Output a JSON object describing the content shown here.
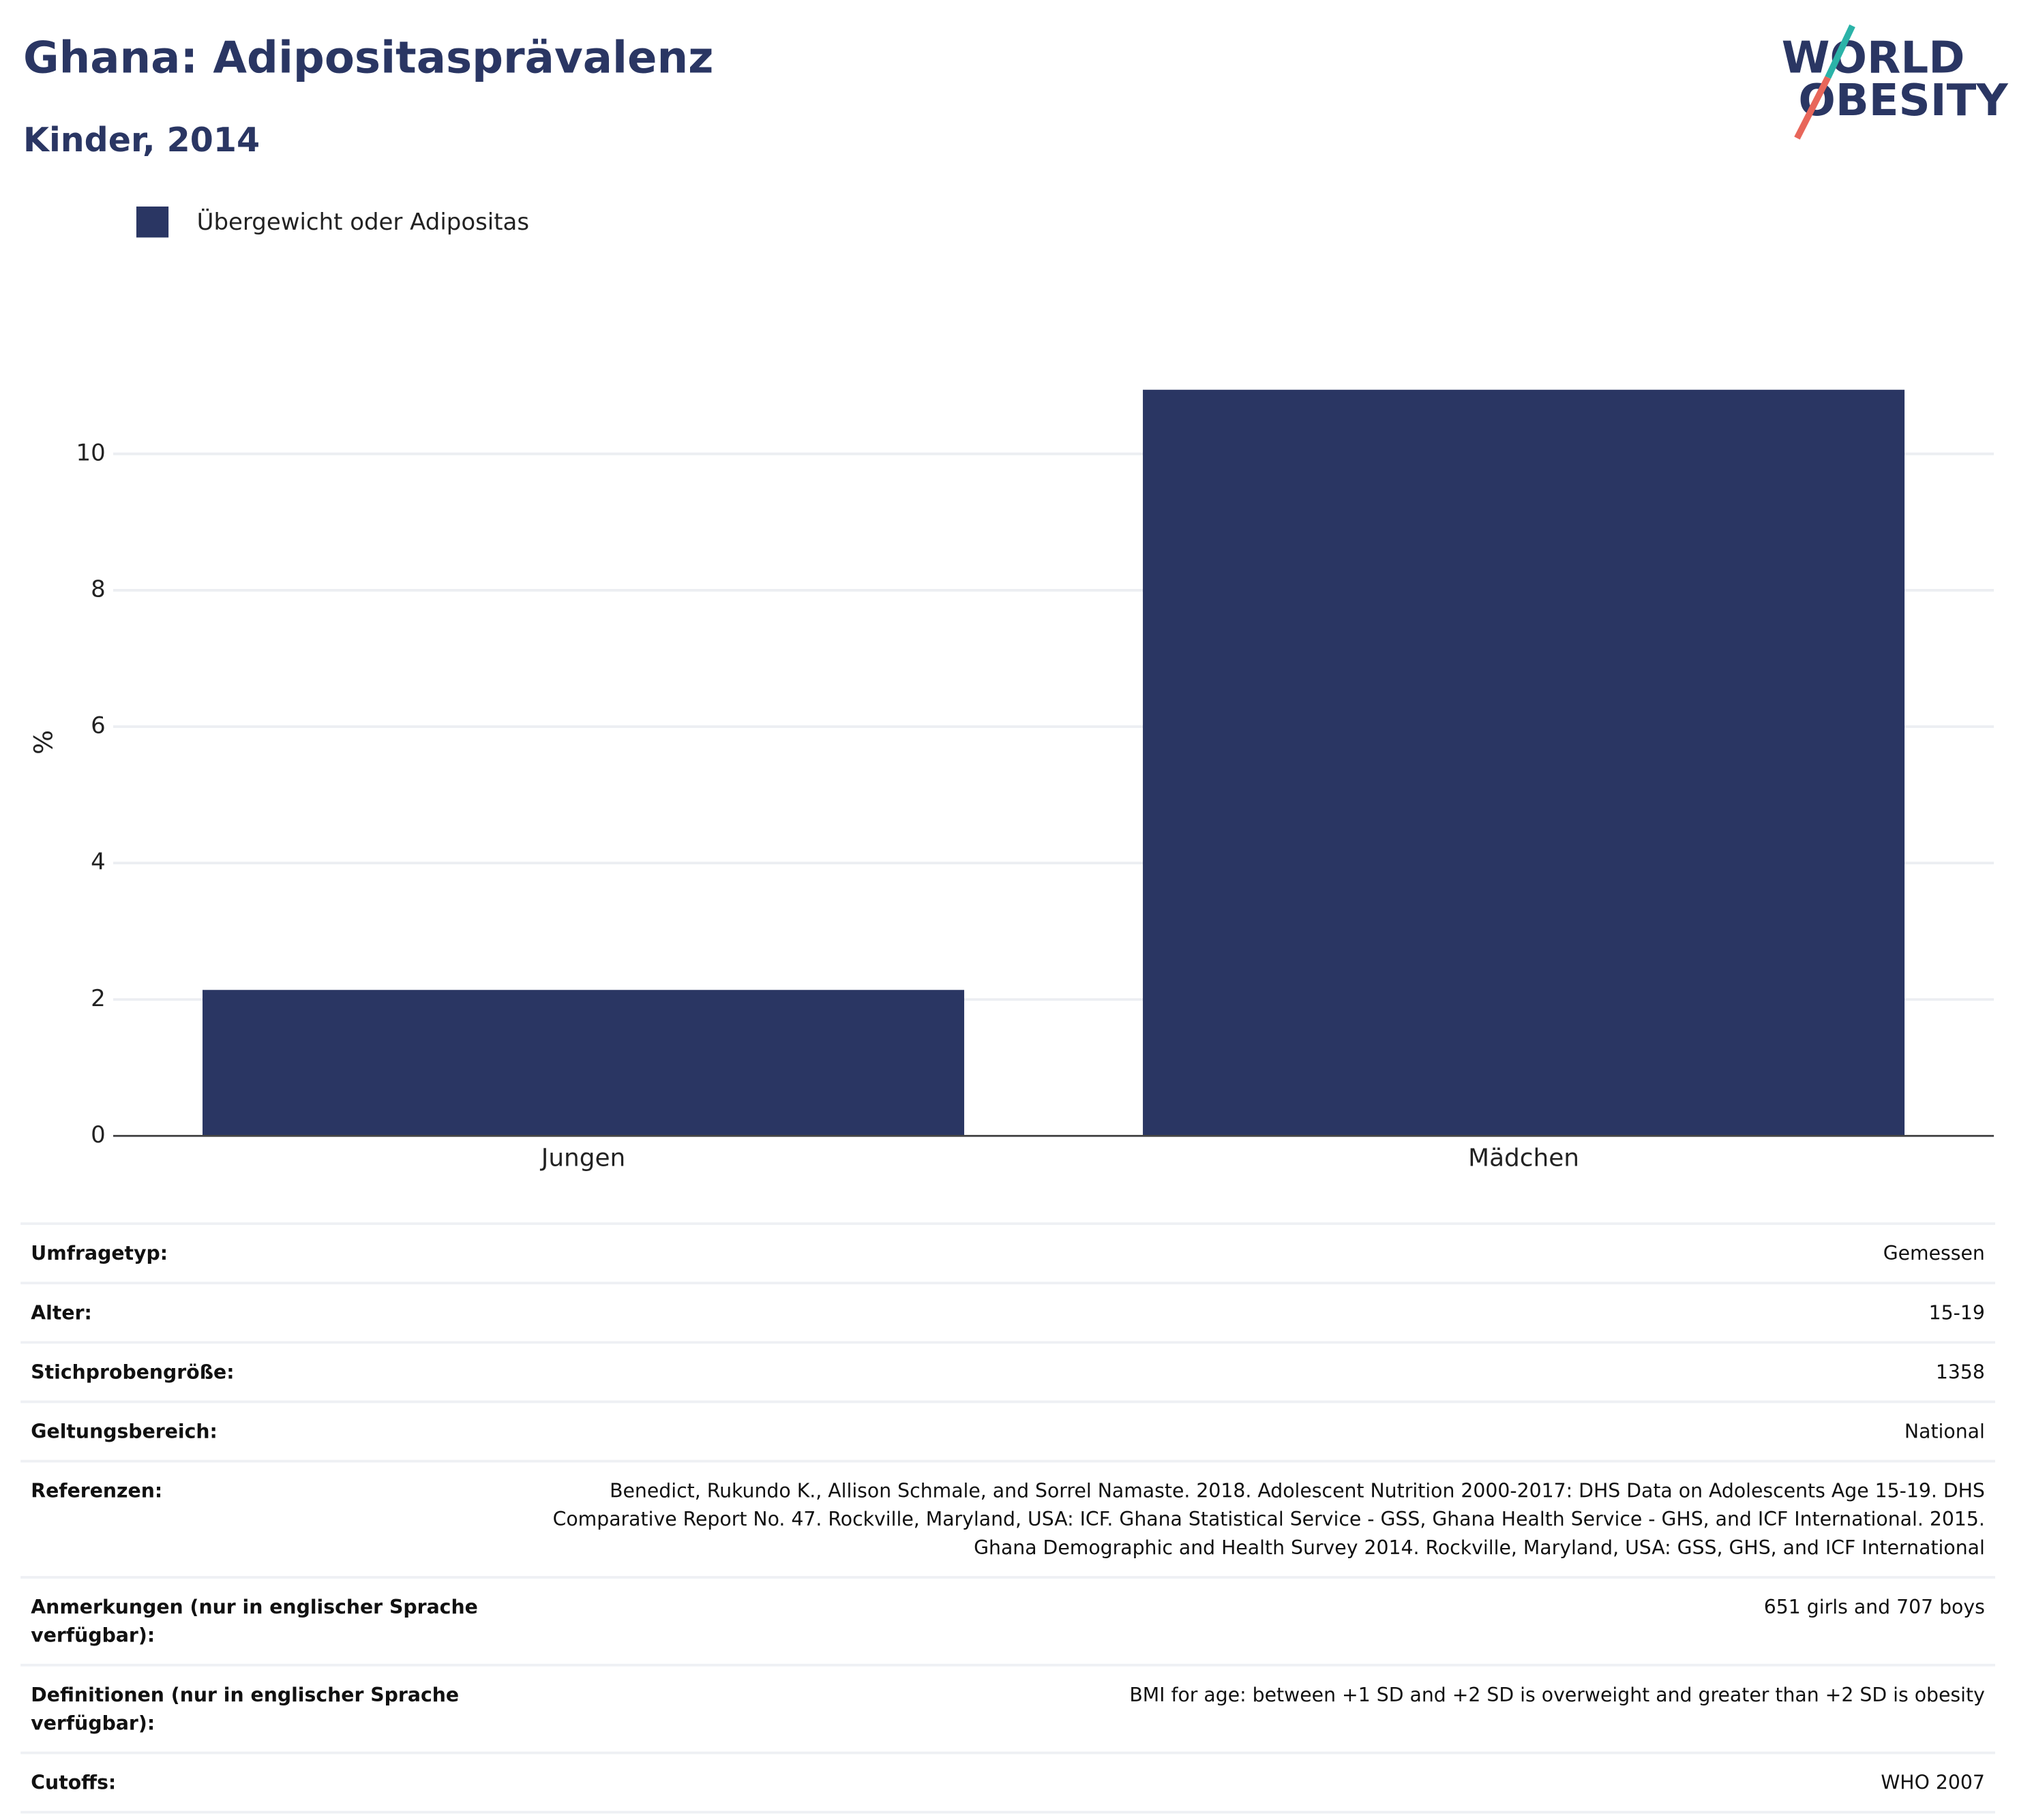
{
  "chart_data": {
    "type": "bar",
    "title": "Ghana: Adipositasprävalenz",
    "subtitle": "Kinder, 2014",
    "y_label": "%",
    "categories": [
      "Jungen",
      "Mädchen"
    ],
    "series": [
      {
        "name": "Übergewicht oder Adipositas",
        "color": "#2a3663",
        "values": [
          2.14,
          10.94
        ]
      }
    ],
    "ylim": [
      0,
      11.45
    ],
    "yticks": [
      0,
      2,
      4,
      6,
      8,
      10
    ],
    "grid": true,
    "legend": "top-left"
  },
  "logo": {
    "line1": "WORLD",
    "line2": "OBESITY"
  },
  "table": {
    "rows": [
      [
        "Umfragetyp:",
        "Gemessen"
      ],
      [
        "Alter:",
        "15-19"
      ],
      [
        "Stichprobengröße:",
        "1358"
      ],
      [
        "Geltungsbereich:",
        "National"
      ],
      [
        "Referenzen:",
        "Benedict, Rukundo K., Allison Schmale, and Sorrel Namaste. 2018. Adolescent Nutrition 2000-2017: DHS Data on Adolescents Age 15-19. DHS Comparative Report No. 47. Rockville, Maryland, USA: ICF. Ghana Statistical Service - GSS, Ghana Health Service - GHS, and ICF International. 2015. Ghana Demographic and Health Survey 2014. Rockville, Maryland, USA: GSS, GHS, and ICF International"
      ],
      [
        "Anmerkungen (nur in englischer Sprache verfügbar):",
        "651 girls and 707 boys"
      ],
      [
        "Definitionen (nur in englischer Sprache verfügbar):",
        "BMI for age: between +1 SD and +2 SD is overweight and greater than +2 SD is obesity"
      ],
      [
        "Cutoffs:",
        "WHO 2007"
      ]
    ]
  }
}
